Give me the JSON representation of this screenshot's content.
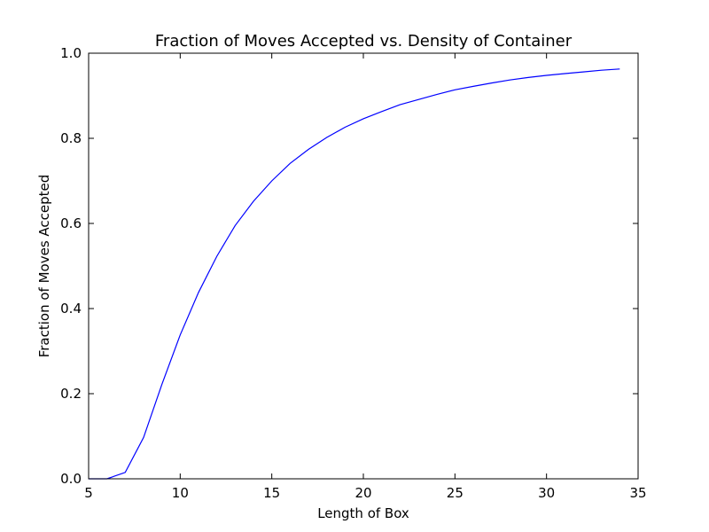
{
  "chart_data": {
    "type": "line",
    "title": "Fraction of Moves Accepted vs. Density of Container",
    "xlabel": "Length of Box",
    "ylabel": "Fraction of Moves Accepted",
    "xlim": [
      5,
      35
    ],
    "ylim": [
      0.0,
      1.0
    ],
    "xticks": [
      "5",
      "10",
      "15",
      "20",
      "25",
      "30",
      "35"
    ],
    "yticks": [
      "0.0",
      "0.2",
      "0.4",
      "0.6",
      "0.8",
      "1.0"
    ],
    "grid": false,
    "legend": "none",
    "series": [
      {
        "color": "#0000ff",
        "x": [
          5,
          6,
          7,
          8,
          9,
          10,
          11,
          12,
          13,
          14,
          15,
          16,
          17,
          18,
          19,
          20,
          21,
          22,
          23,
          24,
          25,
          26,
          27,
          28,
          29,
          30,
          31,
          32,
          33,
          34
        ],
        "y": [
          0.0,
          0.0,
          0.015,
          0.097,
          0.222,
          0.338,
          0.438,
          0.523,
          0.595,
          0.652,
          0.7,
          0.741,
          0.774,
          0.802,
          0.826,
          0.846,
          0.863,
          0.879,
          0.891,
          0.903,
          0.914,
          0.922,
          0.93,
          0.937,
          0.943,
          0.948,
          0.952,
          0.956,
          0.96,
          0.963
        ]
      }
    ]
  }
}
